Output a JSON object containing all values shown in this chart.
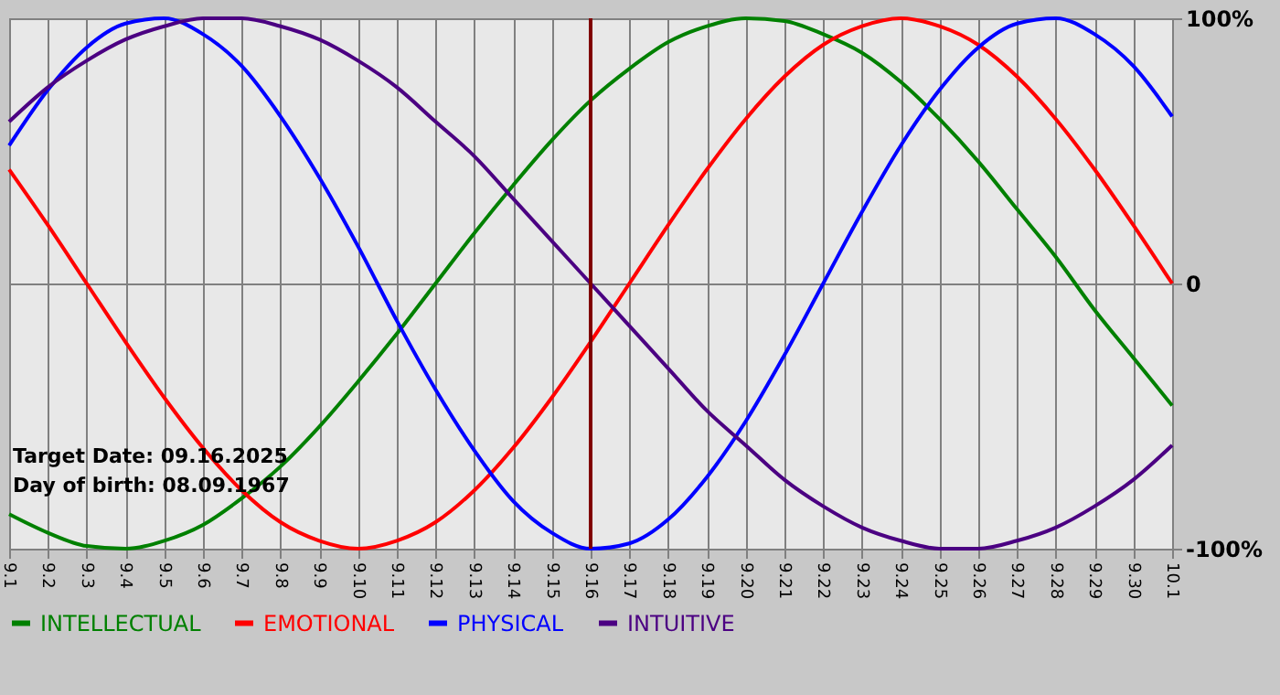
{
  "chart_data": {
    "type": "line",
    "categories": [
      "9.1",
      "9.2",
      "9.3",
      "9.4",
      "9.5",
      "9.6",
      "9.7",
      "9.8",
      "9.9",
      "9.10",
      "9.11",
      "9.12",
      "9.13",
      "9.14",
      "9.15",
      "9.16",
      "9.17",
      "9.18",
      "9.19",
      "9.20",
      "9.21",
      "9.22",
      "9.23",
      "9.24",
      "9.25",
      "9.26",
      "9.27",
      "9.28",
      "9.29",
      "9.30",
      "10.1"
    ],
    "series": [
      {
        "name": "INTELLECTUAL",
        "color": "#008000",
        "values": [
          -0.87,
          -0.94,
          -0.99,
          -1.0,
          -0.97,
          -0.91,
          -0.81,
          -0.69,
          -0.54,
          -0.37,
          -0.19,
          0,
          0.19,
          0.37,
          0.54,
          0.69,
          0.81,
          0.91,
          0.97,
          1.0,
          0.99,
          0.94,
          0.87,
          0.76,
          0.62,
          0.46,
          0.28,
          0.1,
          -0.1,
          -0.28,
          -0.46
        ]
      },
      {
        "name": "EMOTIONAL",
        "color": "#ff0000",
        "values": [
          0.43,
          0.22,
          0,
          -0.22,
          -0.43,
          -0.62,
          -0.78,
          -0.9,
          -0.97,
          -1.0,
          -0.97,
          -0.9,
          -0.78,
          -0.62,
          -0.43,
          -0.22,
          0,
          0.22,
          0.43,
          0.62,
          0.78,
          0.9,
          0.97,
          1.0,
          0.97,
          0.9,
          0.78,
          0.62,
          0.43,
          0.22,
          0
        ]
      },
      {
        "name": "PHYSICAL",
        "color": "#0000ff",
        "values": [
          0.52,
          0.73,
          0.89,
          0.98,
          1.0,
          0.94,
          0.82,
          0.63,
          0.4,
          0.14,
          -0.14,
          -0.4,
          -0.63,
          -0.82,
          -0.94,
          -1.0,
          -0.98,
          -0.89,
          -0.73,
          -0.52,
          -0.27,
          0,
          0.27,
          0.52,
          0.73,
          0.89,
          0.98,
          1.0,
          0.94,
          0.82,
          0.63
        ]
      },
      {
        "name": "INTUITIVE",
        "color": "#4b0082",
        "values": [
          0.61,
          0.74,
          0.84,
          0.92,
          0.97,
          1.0,
          1.0,
          0.97,
          0.92,
          0.84,
          0.74,
          0.61,
          0.48,
          0.32,
          0.16,
          0,
          -0.16,
          -0.32,
          -0.48,
          -0.61,
          -0.74,
          -0.84,
          -0.92,
          -0.97,
          -1.0,
          -1.0,
          -0.97,
          -0.92,
          -0.84,
          -0.74,
          -0.61
        ]
      }
    ],
    "ylim": [
      -1,
      1
    ],
    "yticks": [
      {
        "value": -1,
        "label": "-100%"
      },
      {
        "value": 0,
        "label": "0"
      },
      {
        "value": 1,
        "label": "100%"
      }
    ],
    "grid": true,
    "legend": "bottom",
    "ref_lines": [
      {
        "axis": "x",
        "value": "9.16",
        "color": "#800000"
      }
    ],
    "annotations": [
      "Target Date: 09.16.2025",
      "Day of birth: 08.09.1967"
    ]
  }
}
